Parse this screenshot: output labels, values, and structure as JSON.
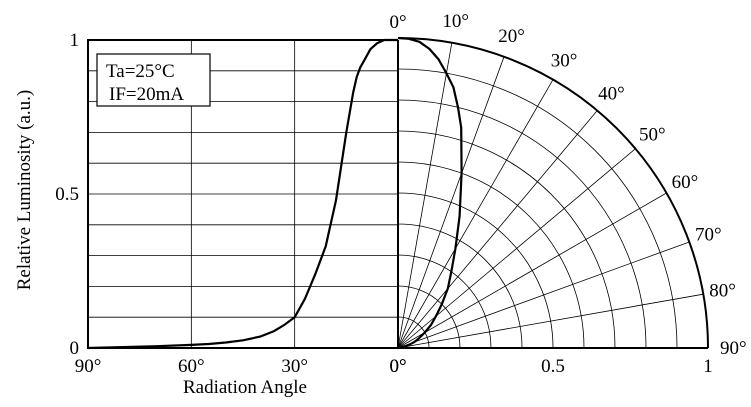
{
  "chart_data": [
    {
      "type": "line",
      "panel": "left",
      "xlabel": "Radiation Angle",
      "ylabel": "Relative Luminosity (a.u.)",
      "x_ticks": [
        "90°",
        "60°",
        "30°",
        "0°"
      ],
      "y_ticks": [
        "0",
        "0.5",
        "1"
      ],
      "xlim": [
        90,
        0
      ],
      "ylim": [
        0,
        1
      ],
      "grid": true,
      "legend": {
        "placement": "top-left",
        "lines": [
          "Ta=25°C",
          "IF=20mA"
        ]
      },
      "series": [
        {
          "x": [
            90,
            80,
            70,
            60,
            55,
            50,
            45,
            40,
            36,
            33,
            30,
            27,
            24,
            21,
            18,
            15,
            13,
            12,
            11,
            10,
            8,
            6,
            4,
            2,
            0
          ],
          "y": [
            0.0,
            0.003,
            0.006,
            0.01,
            0.013,
            0.018,
            0.025,
            0.037,
            0.055,
            0.075,
            0.1,
            0.16,
            0.24,
            0.33,
            0.48,
            0.7,
            0.83,
            0.88,
            0.91,
            0.93,
            0.97,
            0.99,
            1.0,
            1.0,
            1.0
          ]
        }
      ]
    },
    {
      "type": "polar",
      "panel": "right",
      "angle_ticks": [
        "0°",
        "10°",
        "20°",
        "30°",
        "40°",
        "50°",
        "60°",
        "70°",
        "80°",
        "90°"
      ],
      "radial_ticks": [
        "0°",
        "0.5",
        "1"
      ],
      "rlim": [
        0,
        1
      ],
      "series": [
        {
          "angle_deg": [
            0,
            2,
            4,
            6,
            8,
            10,
            12,
            14,
            16,
            20,
            25,
            30,
            35,
            40,
            45,
            50,
            55,
            60,
            65,
            70,
            75,
            80,
            85,
            90
          ],
          "r": [
            1.0,
            0.998,
            0.99,
            0.97,
            0.94,
            0.9,
            0.86,
            0.8,
            0.74,
            0.6,
            0.47,
            0.37,
            0.3,
            0.25,
            0.2,
            0.16,
            0.13,
            0.1,
            0.075,
            0.055,
            0.035,
            0.02,
            0.01,
            0.0
          ]
        }
      ]
    }
  ]
}
